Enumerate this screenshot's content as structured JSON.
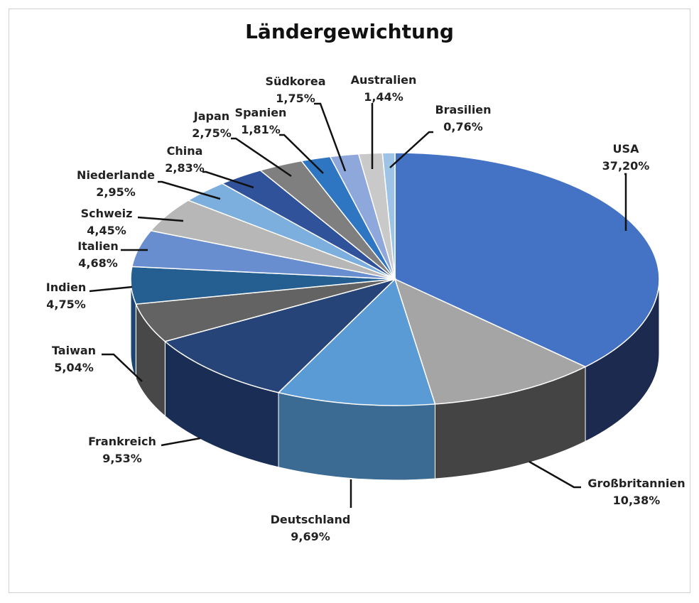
{
  "chart_data": {
    "type": "pie",
    "title": "Ländergewichtung",
    "slices": [
      {
        "label": "USA",
        "value_text": "37,20%",
        "value": 37.2,
        "color": "#4472C4",
        "side": "#1B2A4E"
      },
      {
        "label": "Großbritannien",
        "value_text": "10,38%",
        "value": 10.38,
        "color": "#A5A5A5",
        "side": "#444444"
      },
      {
        "label": "Deutschland",
        "value_text": "9,69%",
        "value": 9.69,
        "color": "#5B9BD5",
        "side": "#3B6A92"
      },
      {
        "label": "Frankreich",
        "value_text": "9,53%",
        "value": 9.53,
        "color": "#264478",
        "side": "#1A2E55"
      },
      {
        "label": "Taiwan",
        "value_text": "5,04%",
        "value": 5.04,
        "color": "#636363",
        "side": "#484848"
      },
      {
        "label": "Indien",
        "value_text": "4,75%",
        "value": 4.75,
        "color": "#255E91",
        "side": "#1C4670"
      },
      {
        "label": "Italien",
        "value_text": "4,68%",
        "value": 4.68,
        "color": "#698ED0",
        "side": "#4A6AA8"
      },
      {
        "label": "Schweiz",
        "value_text": "4,45%",
        "value": 4.45,
        "color": "#B7B7B7",
        "side": "#8A8A8A"
      },
      {
        "label": "Niederlande",
        "value_text": "2,95%",
        "value": 2.95,
        "color": "#7CAFDD",
        "side": "#5A8CBA"
      },
      {
        "label": "China",
        "value_text": "2,83%",
        "value": 2.83,
        "color": "#2F529A",
        "side": "#203C72"
      },
      {
        "label": "Japan",
        "value_text": "2,75%",
        "value": 2.75,
        "color": "#7F7F7F",
        "side": "#5E5E5E"
      },
      {
        "label": "Spanien",
        "value_text": "1,81%",
        "value": 1.81,
        "color": "#2E75C2",
        "side": "#1F5693"
      },
      {
        "label": "Südkorea",
        "value_text": "1,75%",
        "value": 1.75,
        "color": "#8FA8DC",
        "side": "#6B83B5"
      },
      {
        "label": "Australien",
        "value_text": "1,44%",
        "value": 1.44,
        "color": "#C9C9C9",
        "side": "#9C9C9C"
      },
      {
        "label": "Brasilien",
        "value_text": "0,76%",
        "value": 0.76,
        "color": "#9DC3E6",
        "side": "#79A0C2"
      }
    ]
  }
}
